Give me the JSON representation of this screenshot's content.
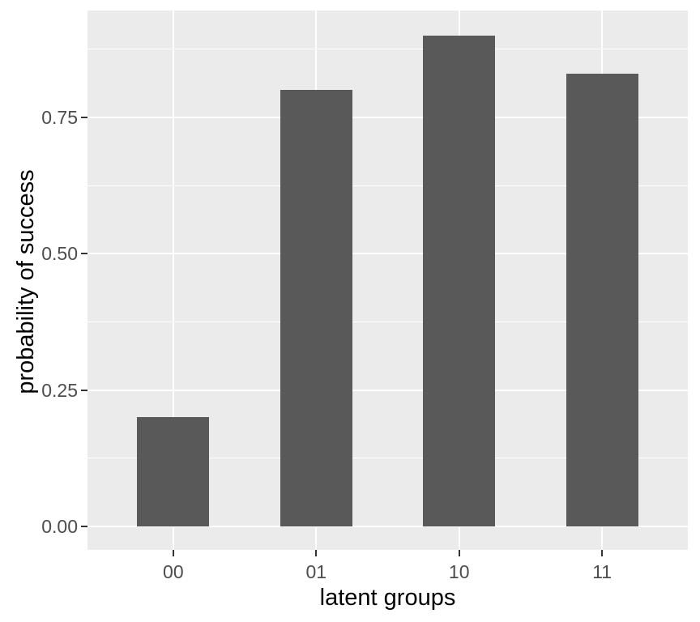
{
  "chart_data": {
    "type": "bar",
    "title": "",
    "categories": [
      "00",
      "01",
      "10",
      "11"
    ],
    "values": [
      0.2,
      0.8,
      0.9,
      0.83
    ],
    "xlabel": "latent groups",
    "ylabel": "probability of success",
    "ylim": [
      0,
      0.945
    ],
    "yticks": [
      0,
      0.25,
      0.5,
      0.75
    ],
    "ytick_labels": [
      "0.00",
      "0.25",
      "0.50",
      "0.75"
    ],
    "yminor": [
      0.125,
      0.375,
      0.625,
      0.875
    ],
    "grid": "white major and minor gridlines on grey panel, ggplot2 style",
    "legend": "none",
    "colors": {
      "bar_fill": "#595959",
      "panel_bg": "#ebebeb",
      "grid_major": "#ffffff",
      "grid_minor": "#ffffff",
      "tick_mark": "#333333",
      "tick_label": "#4d4d4d",
      "axis_title": "#000000",
      "outer_bg": "#ffffff"
    }
  }
}
